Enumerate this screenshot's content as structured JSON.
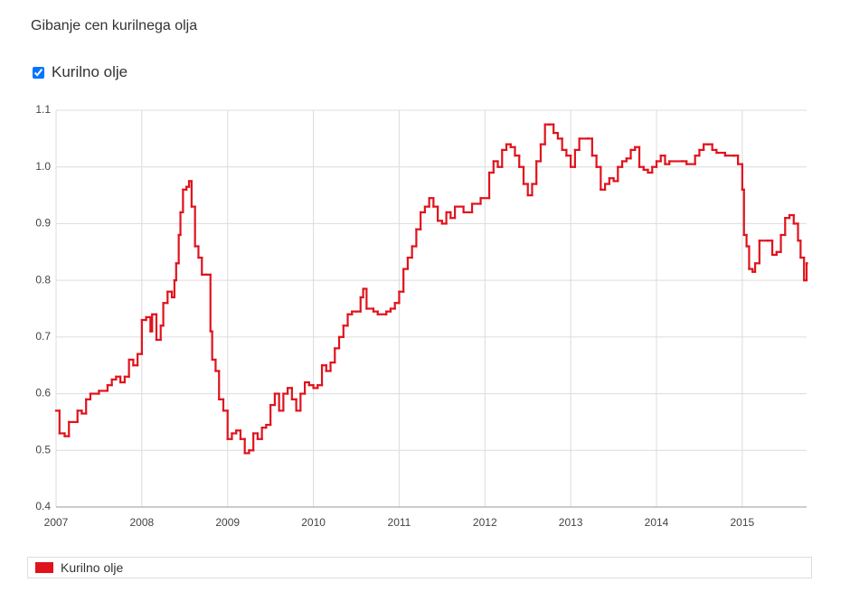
{
  "chart_data": {
    "type": "line",
    "step": true,
    "title": "Gibanje cen kurilnega olja",
    "x": [
      2007.0,
      2007.04,
      2007.1,
      2007.15,
      2007.25,
      2007.3,
      2007.35,
      2007.4,
      2007.5,
      2007.6,
      2007.65,
      2007.7,
      2007.75,
      2007.8,
      2007.85,
      2007.9,
      2007.95,
      2008.0,
      2008.05,
      2008.1,
      2008.12,
      2008.17,
      2008.22,
      2008.25,
      2008.3,
      2008.35,
      2008.38,
      2008.4,
      2008.43,
      2008.45,
      2008.48,
      2008.52,
      2008.55,
      2008.58,
      2008.62,
      2008.66,
      2008.7,
      2008.75,
      2008.8,
      2008.82,
      2008.86,
      2008.9,
      2008.95,
      2009.0,
      2009.05,
      2009.1,
      2009.15,
      2009.2,
      2009.25,
      2009.3,
      2009.35,
      2009.4,
      2009.45,
      2009.5,
      2009.55,
      2009.6,
      2009.65,
      2009.7,
      2009.75,
      2009.8,
      2009.85,
      2009.9,
      2009.95,
      2010.0,
      2010.05,
      2010.1,
      2010.15,
      2010.2,
      2010.25,
      2010.3,
      2010.35,
      2010.4,
      2010.45,
      2010.5,
      2010.55,
      2010.58,
      2010.62,
      2010.7,
      2010.75,
      2010.85,
      2010.9,
      2010.95,
      2011.0,
      2011.05,
      2011.1,
      2011.15,
      2011.2,
      2011.25,
      2011.3,
      2011.35,
      2011.4,
      2011.45,
      2011.5,
      2011.55,
      2011.6,
      2011.65,
      2011.75,
      2011.85,
      2011.95,
      2012.05,
      2012.1,
      2012.15,
      2012.2,
      2012.25,
      2012.3,
      2012.35,
      2012.4,
      2012.45,
      2012.5,
      2012.55,
      2012.6,
      2012.65,
      2012.7,
      2012.75,
      2012.8,
      2012.85,
      2012.9,
      2012.95,
      2013.0,
      2013.05,
      2013.1,
      2013.2,
      2013.25,
      2013.3,
      2013.35,
      2013.4,
      2013.45,
      2013.5,
      2013.55,
      2013.6,
      2013.65,
      2013.7,
      2013.75,
      2013.8,
      2013.85,
      2013.9,
      2013.95,
      2014.0,
      2014.05,
      2014.1,
      2014.15,
      2014.3,
      2014.35,
      2014.45,
      2014.5,
      2014.55,
      2014.6,
      2014.65,
      2014.7,
      2014.8,
      2014.9,
      2014.95,
      2015.0,
      2015.02,
      2015.05,
      2015.08,
      2015.12,
      2015.15,
      2015.2,
      2015.3,
      2015.35,
      2015.4,
      2015.45,
      2015.5,
      2015.55,
      2015.6,
      2015.65,
      2015.68,
      2015.72,
      2015.75
    ],
    "series": [
      {
        "name": "Kurilno olje",
        "color": "#e0121c",
        "values": [
          0.57,
          0.53,
          0.525,
          0.55,
          0.57,
          0.565,
          0.59,
          0.6,
          0.605,
          0.615,
          0.625,
          0.63,
          0.62,
          0.63,
          0.66,
          0.65,
          0.67,
          0.73,
          0.735,
          0.71,
          0.74,
          0.695,
          0.72,
          0.76,
          0.78,
          0.77,
          0.8,
          0.83,
          0.88,
          0.92,
          0.96,
          0.965,
          0.975,
          0.93,
          0.86,
          0.84,
          0.81,
          0.81,
          0.71,
          0.66,
          0.64,
          0.59,
          0.57,
          0.52,
          0.53,
          0.535,
          0.52,
          0.495,
          0.5,
          0.53,
          0.52,
          0.54,
          0.545,
          0.58,
          0.6,
          0.57,
          0.6,
          0.61,
          0.59,
          0.57,
          0.6,
          0.62,
          0.615,
          0.61,
          0.615,
          0.65,
          0.64,
          0.655,
          0.68,
          0.7,
          0.72,
          0.74,
          0.745,
          0.745,
          0.77,
          0.785,
          0.75,
          0.745,
          0.74,
          0.745,
          0.75,
          0.76,
          0.78,
          0.82,
          0.84,
          0.86,
          0.89,
          0.92,
          0.93,
          0.945,
          0.93,
          0.905,
          0.9,
          0.92,
          0.91,
          0.93,
          0.92,
          0.935,
          0.945,
          0.99,
          1.01,
          1.0,
          1.03,
          1.04,
          1.035,
          1.02,
          1.0,
          0.97,
          0.95,
          0.97,
          1.01,
          1.04,
          1.075,
          1.075,
          1.06,
          1.05,
          1.03,
          1.02,
          1.0,
          1.03,
          1.05,
          1.05,
          1.02,
          1.0,
          0.96,
          0.97,
          0.98,
          0.975,
          1.0,
          1.01,
          1.015,
          1.03,
          1.035,
          1.0,
          0.995,
          0.99,
          1.0,
          1.01,
          1.02,
          1.005,
          1.01,
          1.01,
          1.005,
          1.02,
          1.03,
          1.04,
          1.04,
          1.03,
          1.025,
          1.02,
          1.02,
          1.005,
          0.96,
          0.88,
          0.86,
          0.82,
          0.815,
          0.83,
          0.87,
          0.87,
          0.845,
          0.85,
          0.88,
          0.91,
          0.915,
          0.9,
          0.87,
          0.84,
          0.8,
          0.83
        ]
      }
    ],
    "xlim": [
      2007,
      2015.75
    ],
    "xticks": [
      2007,
      2008,
      2009,
      2010,
      2011,
      2012,
      2013,
      2014,
      2015
    ],
    "ylim": [
      0.4,
      1.1
    ],
    "yticks": [
      0.4,
      0.5,
      0.6,
      0.7,
      0.8,
      0.9,
      {
        "value": 1,
        "label": "1.0"
      },
      1.1
    ],
    "grid": true,
    "legend": "bottom"
  }
}
